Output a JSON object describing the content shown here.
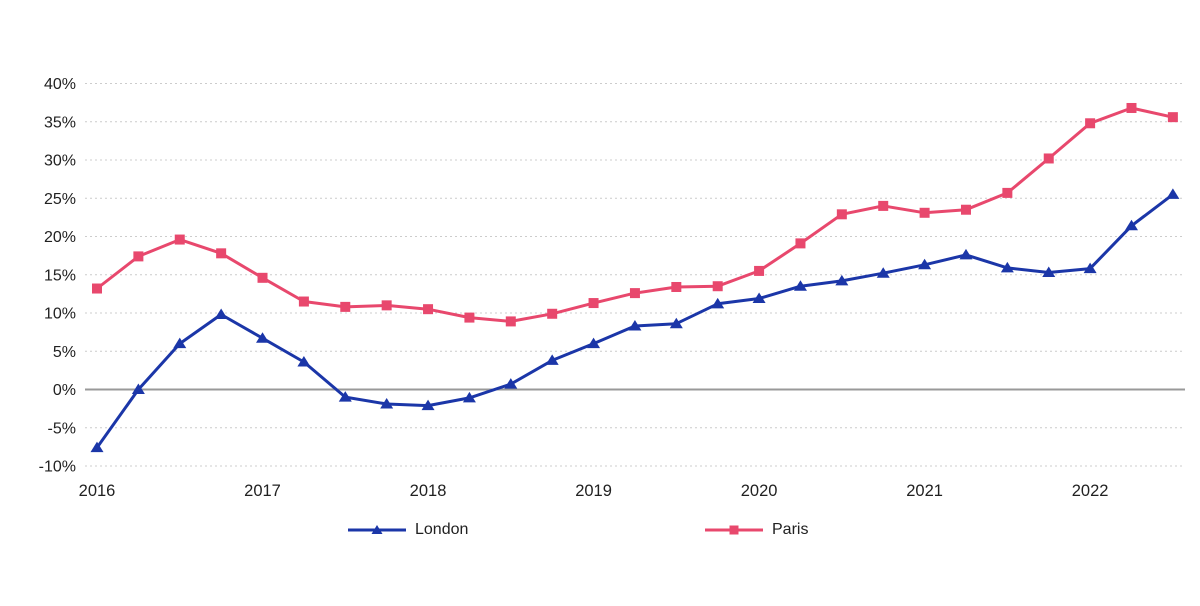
{
  "chart_data": {
    "type": "line",
    "title": "",
    "categories": [
      "2016 Q1",
      "2016 Q2",
      "2016 Q3",
      "2016 Q4",
      "2017 Q1",
      "2017 Q2",
      "2017 Q3",
      "2017 Q4",
      "2018 Q1",
      "2018 Q2",
      "2018 Q3",
      "2018 Q4",
      "2019 Q1",
      "2019 Q2",
      "2019 Q3",
      "2019 Q4",
      "2020 Q1",
      "2020 Q2",
      "2020 Q3",
      "2020 Q4",
      "2021 Q1",
      "2021 Q2",
      "2021 Q3",
      "2021 Q4",
      "2022 Q1",
      "2022 Q2",
      "2022 Q3"
    ],
    "x_year_labels": [
      "2016",
      "2017",
      "2018",
      "2019",
      "2020",
      "2021",
      "2022"
    ],
    "series": [
      {
        "name": "London",
        "color": "#1b36a8",
        "marker": "triangle",
        "values": [
          -7.6,
          0.0,
          6.0,
          9.8,
          6.7,
          3.6,
          -1.0,
          -1.9,
          -2.1,
          -1.1,
          0.7,
          3.8,
          6.0,
          8.3,
          8.6,
          11.2,
          11.9,
          13.5,
          14.2,
          15.2,
          16.3,
          17.6,
          15.9,
          15.3,
          15.8,
          21.4,
          25.5
        ]
      },
      {
        "name": "Paris",
        "color": "#e8486d",
        "marker": "square",
        "values": [
          13.2,
          17.4,
          19.6,
          17.8,
          14.6,
          11.5,
          10.8,
          11.0,
          10.5,
          9.4,
          8.9,
          9.9,
          11.3,
          12.6,
          13.4,
          13.5,
          15.5,
          19.1,
          22.9,
          24.0,
          23.1,
          23.5,
          25.7,
          30.2,
          34.8,
          36.8,
          35.6
        ]
      }
    ],
    "ylim": [
      -10,
      40
    ],
    "ytick_step": 5,
    "ytick_labels": [
      "40%",
      "35%",
      "30%",
      "25%",
      "20%",
      "15%",
      "10%",
      "5%",
      "0%",
      "-5%",
      "-10%"
    ],
    "xlabel": "",
    "ylabel": "",
    "grid": "horizontal-dashed",
    "zero_line": true,
    "legend_position": "bottom",
    "colors": {
      "grid_line": "#cccccc",
      "zero_line": "#999999",
      "tick_text": "#212121",
      "background": "#ffffff"
    }
  }
}
